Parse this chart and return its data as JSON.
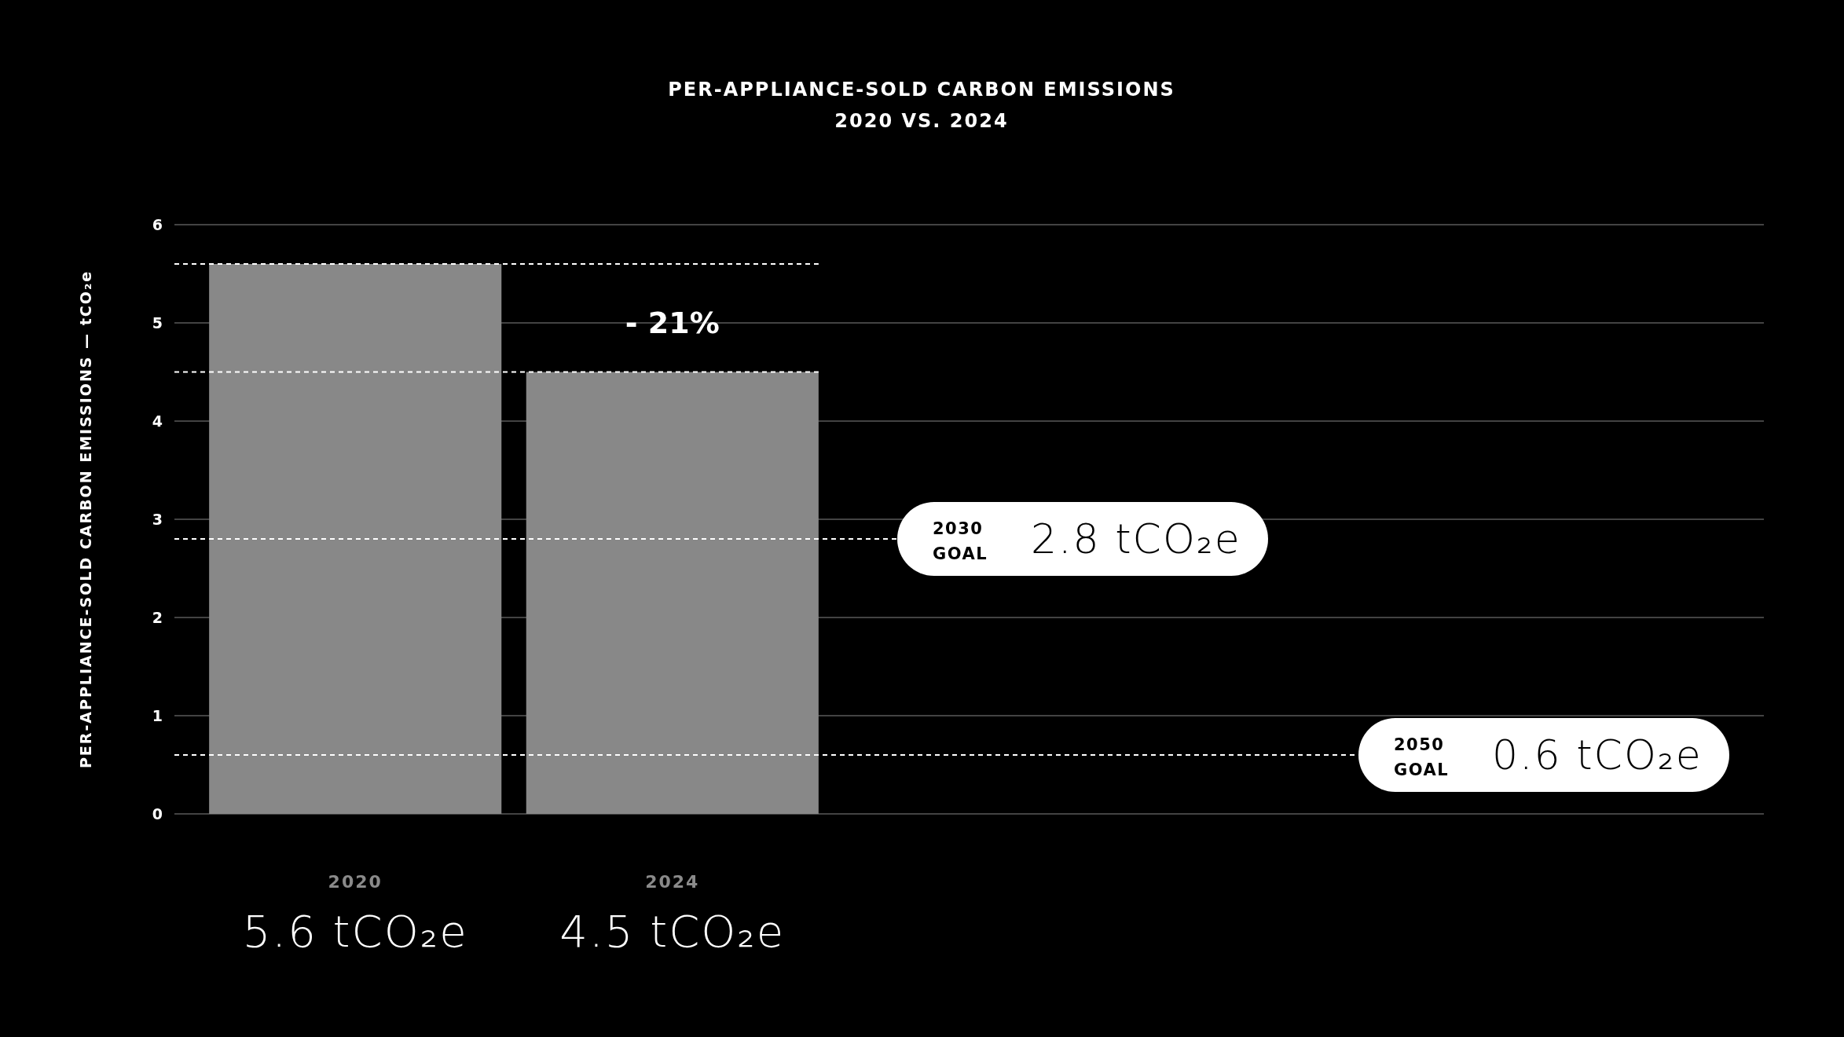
{
  "chart_data": {
    "type": "bar",
    "title": "PER-APPLIANCE-SOLD CARBON EMISSIONS",
    "subtitle": "2020 VS. 2024",
    "ylabel": "PER-APPLIANCE-SOLD CARBON EMISSIONS — tCO₂e",
    "categories": [
      "2020",
      "2024"
    ],
    "values": [
      5.6,
      4.5
    ],
    "color": "#888888",
    "value_labels": [
      "5.6 tCO₂e",
      "4.5 tCO₂e"
    ],
    "ylim": [
      0,
      6
    ],
    "yticks": [
      0,
      1,
      2,
      3,
      4,
      5,
      6
    ],
    "grid": "y",
    "ref_lines": [
      {
        "axis": "y",
        "value": 5.6,
        "color": "#ffffff",
        "line_style": "dashed"
      },
      {
        "axis": "y",
        "value": 4.5,
        "color": "#ffffff",
        "line_style": "dashed"
      },
      {
        "axis": "y",
        "value": 2.8,
        "label": "2030 GOAL",
        "color": "#ffffff",
        "line_style": "dashed"
      },
      {
        "axis": "y",
        "value": 0.6,
        "label": "2050 GOAL",
        "color": "#ffffff",
        "line_style": "dashed"
      }
    ],
    "annotations": [
      "- 21%",
      "2.8 tCO₂e",
      "0.6 tCO₂e"
    ]
  }
}
